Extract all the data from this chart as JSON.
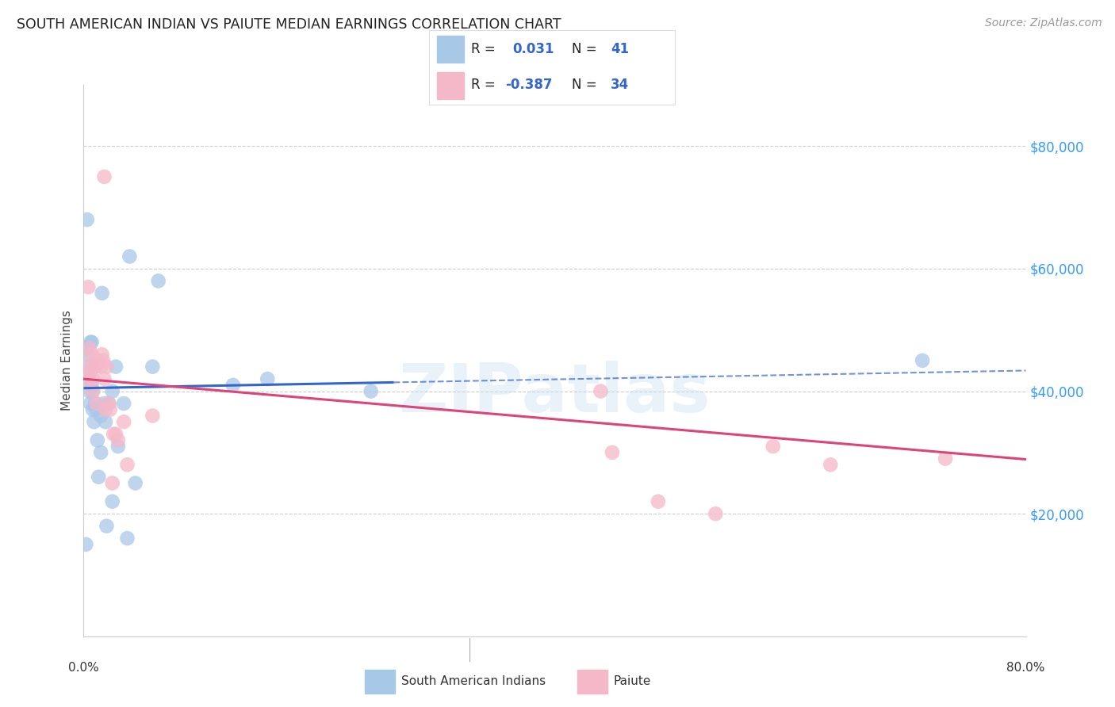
{
  "title": "SOUTH AMERICAN INDIAN VS PAIUTE MEDIAN EARNINGS CORRELATION CHART",
  "source": "Source: ZipAtlas.com",
  "ylabel": "Median Earnings",
  "yticks": [
    0,
    20000,
    40000,
    60000,
    80000
  ],
  "xlim": [
    0.0,
    0.82
  ],
  "ylim": [
    0,
    90000
  ],
  "r_blue": 0.031,
  "n_blue": 41,
  "r_pink": -0.387,
  "n_pink": 34,
  "blue_scatter": "#a8c8e8",
  "pink_scatter": "#f5b8c8",
  "blue_line": "#3366cc",
  "pink_line": "#dd4477",
  "grid_color": "#cccccc",
  "right_label_color": "#3399ff",
  "south_american_x": [
    0.002,
    0.003,
    0.003,
    0.004,
    0.004,
    0.005,
    0.005,
    0.005,
    0.006,
    0.006,
    0.007,
    0.007,
    0.008,
    0.008,
    0.009,
    0.01,
    0.01,
    0.011,
    0.012,
    0.013,
    0.015,
    0.015,
    0.016,
    0.018,
    0.019,
    0.02,
    0.022,
    0.025,
    0.025,
    0.028,
    0.03,
    0.035,
    0.038,
    0.04,
    0.045,
    0.06,
    0.065,
    0.13,
    0.16,
    0.25,
    0.73
  ],
  "south_american_y": [
    15000,
    47000,
    68000,
    46000,
    42000,
    44000,
    43000,
    40000,
    48000,
    38000,
    48000,
    41000,
    40000,
    37000,
    35000,
    44000,
    38000,
    37000,
    32000,
    26000,
    36000,
    30000,
    56000,
    38000,
    35000,
    18000,
    38000,
    40000,
    22000,
    44000,
    31000,
    38000,
    16000,
    62000,
    25000,
    44000,
    58000,
    41000,
    42000,
    40000,
    45000
  ],
  "paiute_x": [
    0.002,
    0.003,
    0.004,
    0.005,
    0.006,
    0.007,
    0.008,
    0.008,
    0.01,
    0.011,
    0.012,
    0.015,
    0.016,
    0.017,
    0.018,
    0.018,
    0.019,
    0.02,
    0.022,
    0.023,
    0.025,
    0.026,
    0.028,
    0.03,
    0.035,
    0.038,
    0.06,
    0.45,
    0.46,
    0.5,
    0.55,
    0.6,
    0.65,
    0.75
  ],
  "paiute_y": [
    42000,
    44000,
    57000,
    47000,
    43000,
    46000,
    42000,
    40000,
    44000,
    38000,
    45000,
    44000,
    46000,
    45000,
    75000,
    42000,
    37000,
    44000,
    38000,
    37000,
    25000,
    33000,
    33000,
    32000,
    35000,
    28000,
    36000,
    40000,
    30000,
    22000,
    20000,
    31000,
    28000,
    29000
  ],
  "blue_line_intercept": 40500,
  "blue_line_slope": 3500,
  "pink_line_intercept": 42000,
  "pink_line_slope": -16000,
  "watermark": "ZIPatlas"
}
